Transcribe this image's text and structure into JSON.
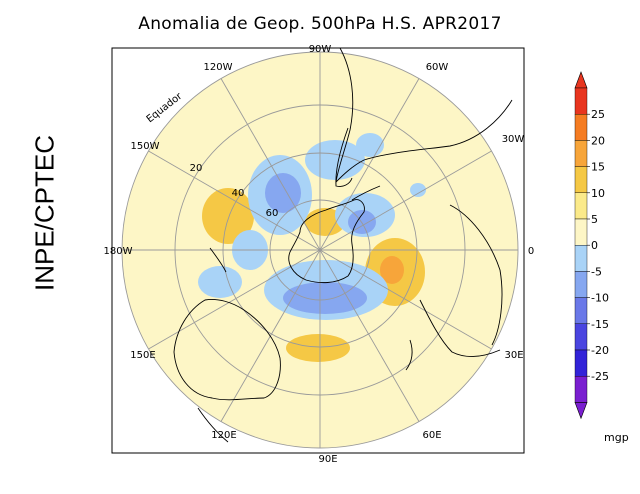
{
  "title": "Anomalia de Geop. 500hPa H.S. APR2017",
  "side_label": "INPE/CPTEC",
  "equator_label": "Equador",
  "longitude_labels": {
    "top": "90W",
    "top_left": "120W",
    "top_right": "60W",
    "upper_left": "150W",
    "upper_right": "30W",
    "left": "180W",
    "right": "0",
    "lower_left": "150E",
    "lower_right": "30E",
    "bottom_left": "120E",
    "bottom_right": "60E",
    "bottom": "90E"
  },
  "latitude_labels": [
    "20",
    "40",
    "60"
  ],
  "colorbar": {
    "unit": "mgp",
    "ticks": [
      "25",
      "20",
      "15",
      "10",
      "5",
      "0",
      "-5",
      "-10",
      "-15",
      "-20",
      "-25"
    ],
    "colors": [
      "#e8351f",
      "#f57c22",
      "#f7a53a",
      "#f5c845",
      "#fbea8a",
      "#fdf6c6",
      "#a9d3f7",
      "#86a7f0",
      "#6a78e8",
      "#4a45e0",
      "#3223d8",
      "#7a1fd0"
    ]
  }
}
